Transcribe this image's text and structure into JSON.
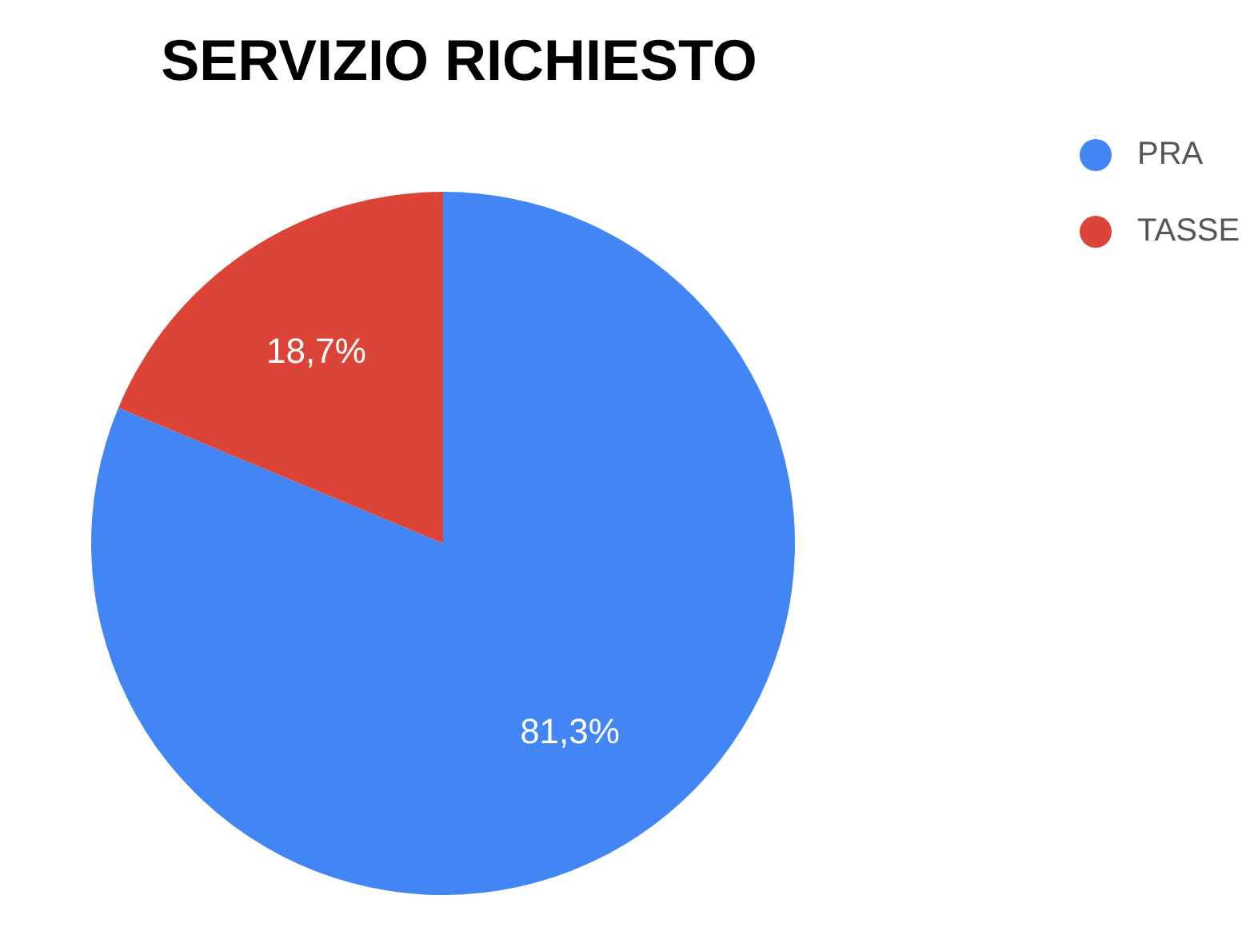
{
  "chart_data": {
    "type": "pie",
    "title": "SERVIZIO RICHIESTO",
    "categories": [
      "PRA",
      "TASSE"
    ],
    "values": [
      81.3,
      18.7
    ],
    "colors": [
      "#4285f4",
      "#db4437"
    ],
    "value_labels": [
      "81,3%",
      "18,7%"
    ],
    "legend": "top right"
  }
}
